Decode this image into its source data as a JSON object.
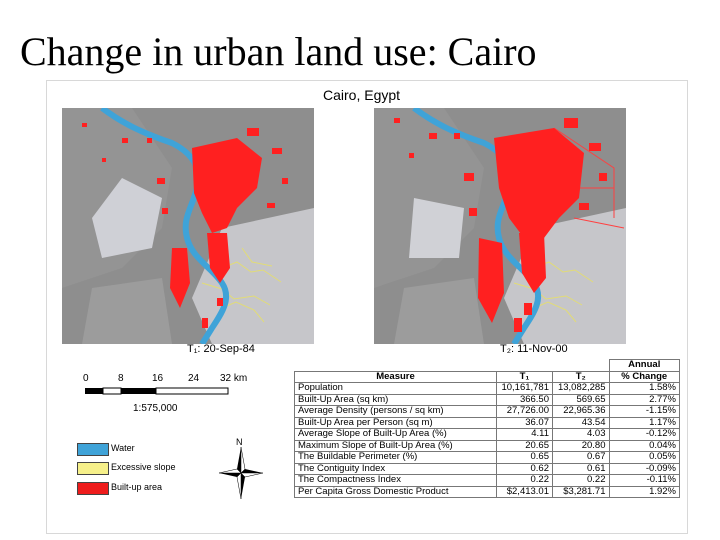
{
  "slide": {
    "title": "Change in urban land use: Cairo"
  },
  "figure": {
    "title": "Cairo, Egypt"
  },
  "maps": [
    {
      "caption": "T₁: 20-Sep-84"
    },
    {
      "caption": "T₂: 11-Nov-00"
    }
  ],
  "scale": {
    "ticks": [
      "0",
      "8",
      "16",
      "24",
      "32 km"
    ],
    "ratio": "1:575,000"
  },
  "legend": [
    {
      "label": "Water",
      "color": "#3fa3d8"
    },
    {
      "label": "Excessive slope",
      "color": "#f6f08a"
    },
    {
      "label": "Built-up area",
      "color": "#ee1c1c"
    }
  ],
  "north": {
    "label": "N"
  },
  "colors": {
    "built_up": "#ff2020",
    "water": "#3fa3d8",
    "terrain": "#8f8f8f",
    "desert": "#c9c9cd",
    "slope": "#e8e27a"
  },
  "table": {
    "header_top": "Annual",
    "headers": [
      "Measure",
      "T₁",
      "T₂",
      "% Change"
    ],
    "rows": [
      [
        "Population",
        "10,161,781",
        "13,082,285",
        "1.58%"
      ],
      [
        "Built-Up Area (sq km)",
        "366.50",
        "569.65",
        "2.77%"
      ],
      [
        "Average Density (persons / sq km)",
        "27,726.00",
        "22,965.36",
        "-1.15%"
      ],
      [
        "Built-Up Area per Person (sq m)",
        "36.07",
        "43.54",
        "1.17%"
      ],
      [
        "Average Slope of Built-Up Area (%)",
        "4.11",
        "4.03",
        "-0.12%"
      ],
      [
        "Maximum Slope of Built-Up Area (%)",
        "20.65",
        "20.80",
        "0.04%"
      ],
      [
        "The Buildable Perimeter (%)",
        "0.65",
        "0.67",
        "0.05%"
      ],
      [
        "The Contiguity Index",
        "0.62",
        "0.61",
        "-0.09%"
      ],
      [
        "The Compactness Index",
        "0.22",
        "0.22",
        "-0.11%"
      ],
      [
        "Per Capita Gross Domestic Product",
        "$2,413.01",
        "$3,281.71",
        "1.92%"
      ]
    ]
  }
}
